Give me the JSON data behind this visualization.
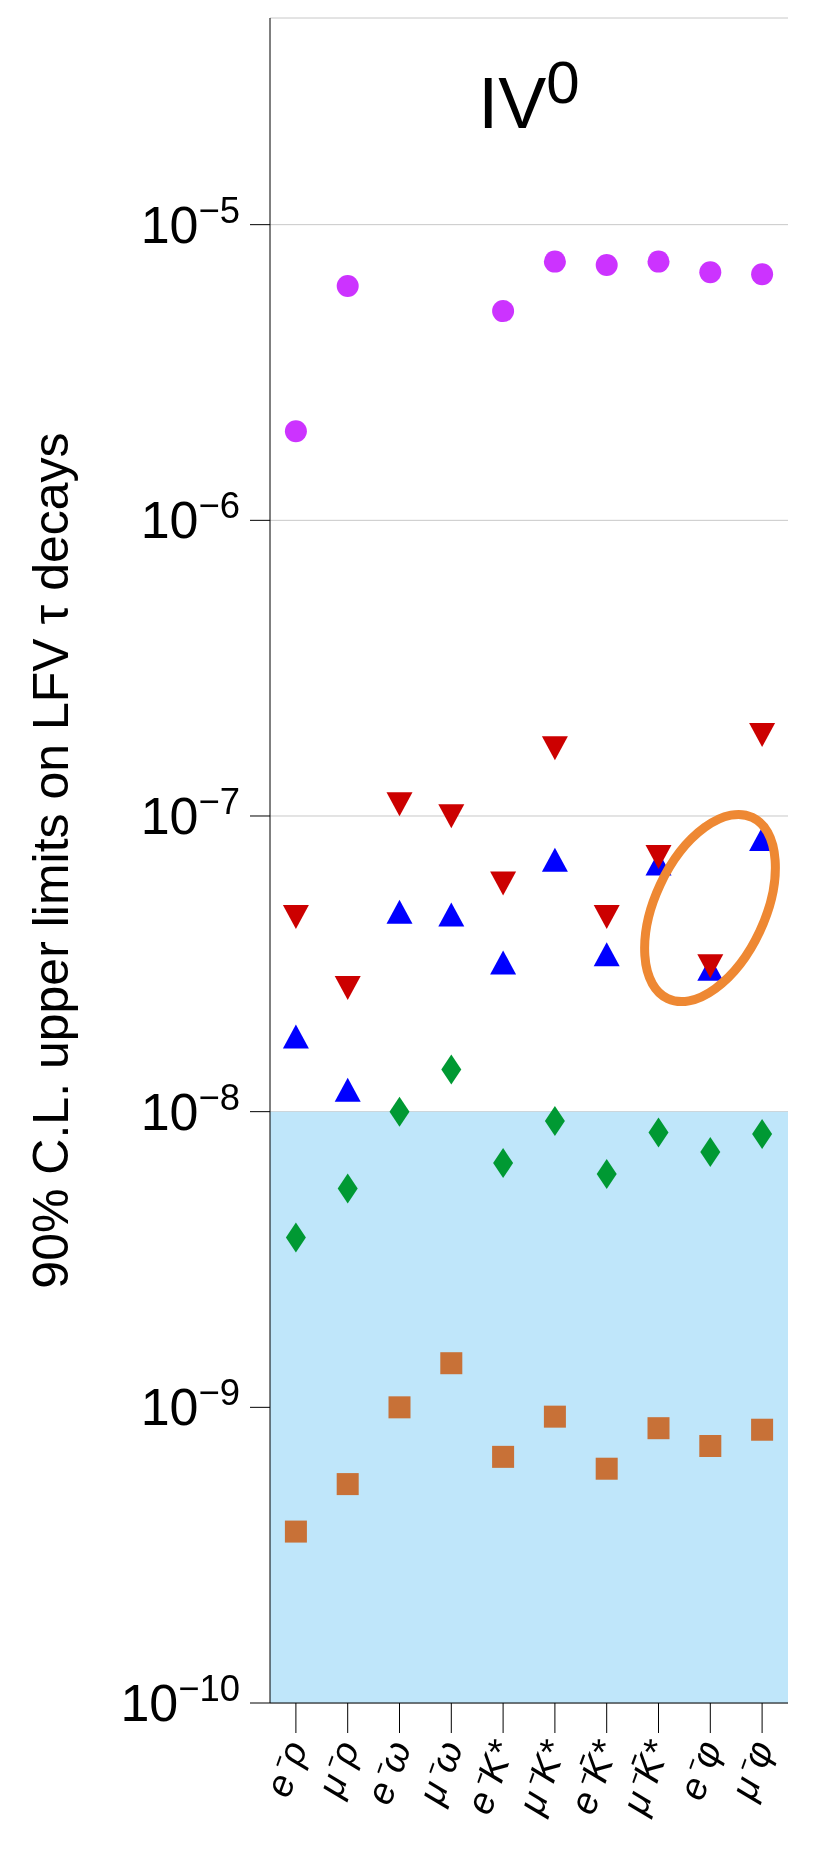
{
  "chart_data": {
    "type": "scatter",
    "title": "IV$^{0}$",
    "ylabel": "90% C.L. upper limits on LFV τ decays",
    "categories": [
      "e⁻ρ",
      "μ⁻ρ",
      "e⁻ω",
      "μ⁻ω",
      "e⁻K*",
      "μ⁻K*",
      "e⁻K̄*",
      "μ⁻K̄*",
      "e⁻φ",
      "μ⁻φ"
    ],
    "series": [
      {
        "color": "#cc33ff",
        "marker": "circle",
        "values": [
          2e-06,
          6.2e-06,
          null,
          null,
          5.1e-06,
          7.5e-06,
          7.3e-06,
          7.5e-06,
          6.9e-06,
          6.8e-06
        ]
      },
      {
        "color": "#0000ff",
        "marker": "triangle",
        "values": [
          1.74e-08,
          1.15e-08,
          4.6e-08,
          4.5e-08,
          3.1e-08,
          6.9e-08,
          3.3e-08,
          6.7e-08,
          2.95e-08,
          8.1e-08
        ]
      },
      {
        "color": "#cc0000",
        "marker": "triangle-down",
        "values": [
          4.7e-08,
          2.7e-08,
          1.13e-07,
          1.03e-07,
          6.1e-08,
          1.75e-07,
          4.7e-08,
          7.5e-08,
          3.2e-08,
          1.94e-07
        ]
      },
      {
        "color": "#009933",
        "marker": "diamond",
        "values": [
          3.75e-09,
          5.5e-09,
          1e-08,
          1.39e-08,
          6.7e-09,
          9.3e-09,
          6.15e-09,
          8.5e-09,
          7.3e-09,
          8.4e-09
        ]
      },
      {
        "color": "#c87137",
        "marker": "square",
        "values": [
          3.8e-10,
          5.5e-10,
          1e-09,
          1.41e-09,
          6.8e-10,
          9.3e-10,
          6.2e-10,
          8.5e-10,
          7.4e-10,
          8.4e-10
        ]
      }
    ],
    "log": true,
    "ylim": [
      1e-10,
      5e-05
    ],
    "yticks": [
      {
        "value": 1e-10,
        "label": "10$^{−10}$"
      },
      {
        "value": 1e-09,
        "label": "10$^{−9}$"
      },
      {
        "value": 1e-08,
        "label": "10$^{−8}$"
      },
      {
        "value": 1e-07,
        "label": "10$^{−7}$"
      },
      {
        "value": 1e-06,
        "label": "10$^{−6}$"
      },
      {
        "value": 1e-05,
        "label": "10$^{−5}$"
      }
    ],
    "bands": [
      {
        "axis": "y",
        "from": 1e-10,
        "to": 1e-08,
        "color": "#bfe6fa"
      }
    ],
    "grid": "y"
  }
}
